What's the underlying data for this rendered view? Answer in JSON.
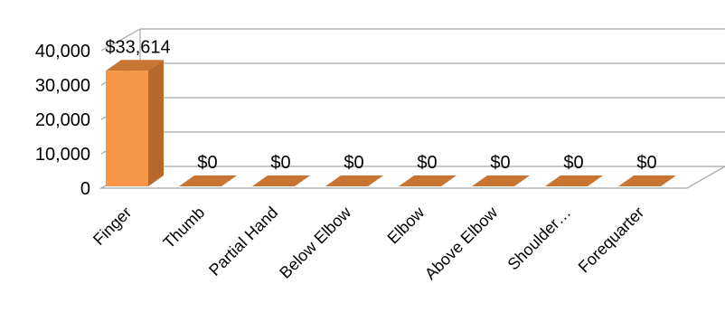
{
  "chart_data": {
    "type": "bar",
    "style": "3d-column",
    "categories": [
      "Finger",
      "Thumb",
      "Partial Hand",
      "Below Elbow",
      "Elbow",
      "Above Elbow",
      "Shoulder…",
      "Forequarter"
    ],
    "values": [
      33614,
      0,
      0,
      0,
      0,
      0,
      0,
      0
    ],
    "data_labels": [
      "$33,614",
      "$0",
      "$0",
      "$0",
      "$0",
      "$0",
      "$0",
      "$0"
    ],
    "y_ticks": [
      "0",
      "10,000",
      "20,000",
      "30,000",
      "40,000"
    ],
    "ylim": [
      0,
      40000
    ],
    "grid": true,
    "legend": "none",
    "colors": {
      "bar_front": "#f79646",
      "bar_side": "#b8682a",
      "bar_top": "#c87533",
      "grid": "#a6a6a6"
    }
  }
}
